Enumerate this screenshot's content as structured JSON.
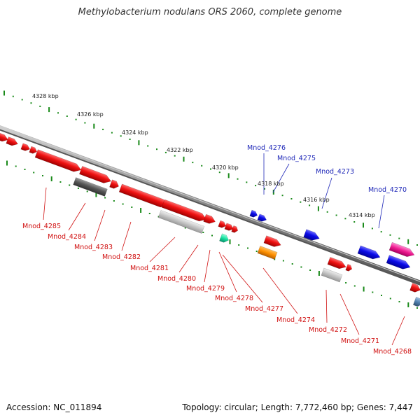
{
  "title": "Methylobacterium nodulans ORS 2060, complete genome",
  "footer": {
    "accession": "Accession: NC_011894",
    "topology": "Topology: circular; Length: 7,772,460 bp; Genes: 7,447"
  },
  "scale_labels": [
    "4328 kbp",
    "4326 kbp",
    "4324 kbp",
    "4322 kbp",
    "4320 kbp",
    "4318 kbp",
    "4316 kbp",
    "4314 kbp"
  ],
  "labels_forward": [
    "Mnod_4276",
    "Mnod_4275",
    "Mnod_4273",
    "Mnod_4270"
  ],
  "labels_reverse": [
    "Mnod_4285",
    "Mnod_4284",
    "Mnod_4283",
    "Mnod_4282",
    "Mnod_4281",
    "Mnod_4280",
    "Mnod_4279",
    "Mnod_4278",
    "Mnod_4277",
    "Mnod_4274",
    "Mnod_4272",
    "Mnod_4271",
    "Mnod_4268"
  ],
  "colors": {
    "forward_label": "#1f28b8",
    "reverse_label": "#d01010",
    "cds": "#ee1111",
    "backbone": "#888888",
    "ticks": "#1a8a1a"
  }
}
